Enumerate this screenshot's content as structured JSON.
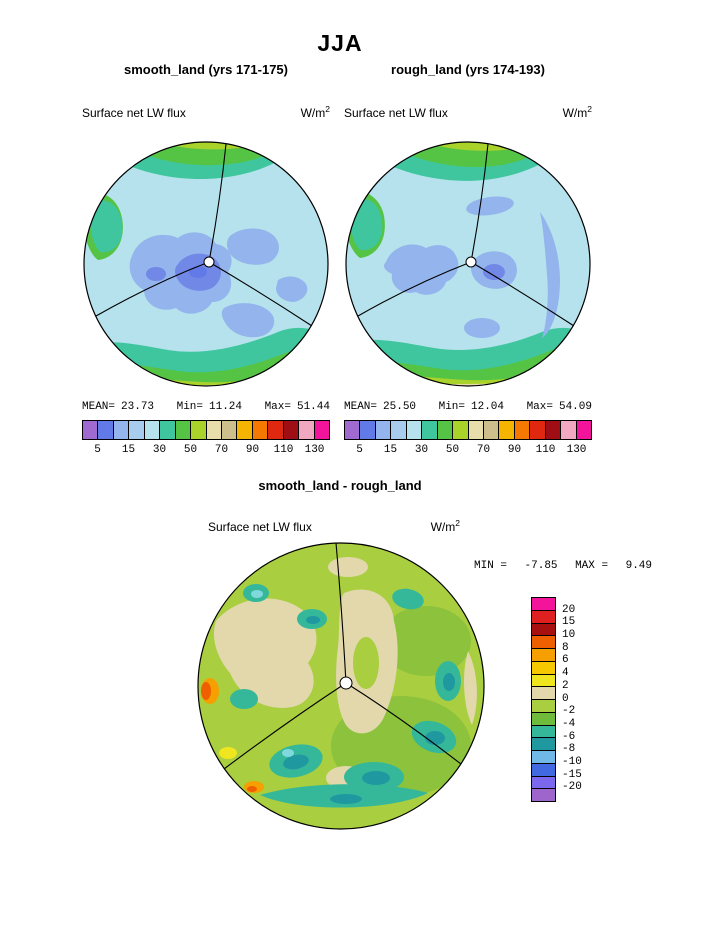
{
  "title": "JJA",
  "panels": [
    {
      "subtitle": "smooth_land (yrs 171-175)",
      "field": "Surface net LW flux",
      "units_base": "W/m",
      "units_exp": "2",
      "mean_label": "MEAN=",
      "mean": "23.73",
      "min_label": "Min=",
      "min": "11.24",
      "max_label": "Max=",
      "max": "51.44"
    },
    {
      "subtitle": "rough_land (yrs 174-193)",
      "field": "Surface net LW flux",
      "units_base": "W/m",
      "units_exp": "2",
      "mean_label": "MEAN=",
      "mean": "25.50",
      "min_label": "Min=",
      "min": "12.04",
      "max_label": "Max=",
      "max": "54.09"
    }
  ],
  "colorbar": {
    "ticks": [
      "5",
      "15",
      "30",
      "50",
      "70",
      "90",
      "110",
      "130"
    ],
    "colors": [
      "#A06BD0",
      "#6279E8",
      "#93B4EC",
      "#A8CCEE",
      "#B5E2EC",
      "#3FC69E",
      "#55C445",
      "#A9D32B",
      "#E7DEAC",
      "#CDBE8C",
      "#F5B400",
      "#F57800",
      "#E02810",
      "#9E0E14",
      "#F2A8C0",
      "#F3149B"
    ]
  },
  "diff": {
    "title": "smooth_land - rough_land",
    "field": "Surface net LW flux",
    "units_base": "W/m",
    "units_exp": "2",
    "min_label": "MIN =",
    "min": "-7.85",
    "max_label": "MAX =",
    "max": "9.49",
    "colorbar": {
      "labels": [
        "20",
        "15",
        "10",
        "8",
        "6",
        "4",
        "2",
        "0",
        "-2",
        "-4",
        "-6",
        "-8",
        "-10",
        "-15",
        "-20"
      ],
      "colors": [
        "#F3149B",
        "#DE2020",
        "#A81010",
        "#EE5F00",
        "#F5A000",
        "#F5C800",
        "#F0E620",
        "#E2D8AC",
        "#A9CE3F",
        "#6FBB3C",
        "#35B89A",
        "#2098A0",
        "#6FB8E8",
        "#4169E1",
        "#7B68EE",
        "#9E66CC"
      ]
    }
  },
  "chart_data": [
    {
      "type": "heatmap",
      "subtype": "polar-stereographic-contour-map",
      "season": "JJA",
      "title": "smooth_land (yrs 171-175)",
      "variable": "Surface net LW flux",
      "units": "W/m^2",
      "stats": {
        "mean": 23.73,
        "min": 11.24,
        "max": 51.44
      },
      "contour_levels": [
        5,
        15,
        30,
        50,
        70,
        90,
        110,
        130
      ],
      "legend_position": "below",
      "palette": [
        "#A06BD0",
        "#6279E8",
        "#93B4EC",
        "#A8CCEE",
        "#B5E2EC",
        "#3FC69E",
        "#55C445",
        "#A9D32B",
        "#E7DEAC",
        "#CDBE8C",
        "#F5B400",
        "#F57800",
        "#E02810",
        "#9E0E14",
        "#F2A8C0",
        "#F3149B"
      ]
    },
    {
      "type": "heatmap",
      "subtype": "polar-stereographic-contour-map",
      "season": "JJA",
      "title": "rough_land (yrs 174-193)",
      "variable": "Surface net LW flux",
      "units": "W/m^2",
      "stats": {
        "mean": 25.5,
        "min": 12.04,
        "max": 54.09
      },
      "contour_levels": [
        5,
        15,
        30,
        50,
        70,
        90,
        110,
        130
      ],
      "legend_position": "below",
      "palette": [
        "#A06BD0",
        "#6279E8",
        "#93B4EC",
        "#A8CCEE",
        "#B5E2EC",
        "#3FC69E",
        "#55C445",
        "#A9D32B",
        "#E7DEAC",
        "#CDBE8C",
        "#F5B400",
        "#F57800",
        "#E02810",
        "#9E0E14",
        "#F2A8C0",
        "#F3149B"
      ]
    },
    {
      "type": "heatmap",
      "subtype": "polar-stereographic-contour-map",
      "season": "JJA",
      "title": "smooth_land - rough_land",
      "variable": "Surface net LW flux",
      "units": "W/m^2",
      "stats": {
        "min": -7.85,
        "max": 9.49
      },
      "contour_levels": [
        -20,
        -15,
        -10,
        -8,
        -6,
        -4,
        -2,
        0,
        2,
        4,
        6,
        8,
        10,
        15,
        20
      ],
      "legend_position": "right",
      "palette": [
        "#9E66CC",
        "#7B68EE",
        "#4169E1",
        "#6FB8E8",
        "#2098A0",
        "#35B89A",
        "#6FBB3C",
        "#A9CE3F",
        "#E2D8AC",
        "#F0E620",
        "#F5C800",
        "#F5A000",
        "#EE5F00",
        "#A81010",
        "#DE2020",
        "#F3149B"
      ]
    }
  ]
}
